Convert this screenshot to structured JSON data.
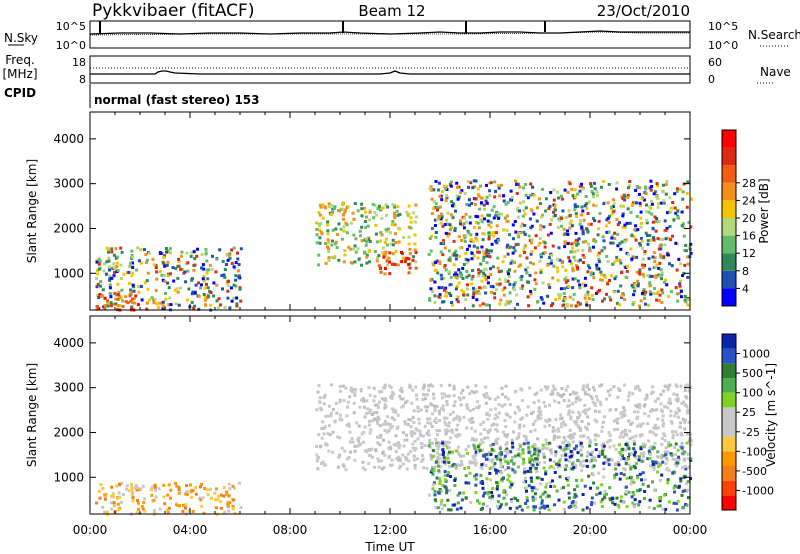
{
  "header": {
    "station": "Pykkvibaer (fitACF)",
    "beam": "Beam 12",
    "date": "23/Oct/2010"
  },
  "noise_panel": {
    "left_label": "N.Sky",
    "left_ticks": [
      "10^5",
      "10^0"
    ],
    "right_ticks": [
      "10^5",
      "10^0"
    ],
    "right_label": "N.Search"
  },
  "freq_panel": {
    "left_label_1": "Freq.",
    "left_label_2": "[MHz]",
    "left_ticks": [
      "18",
      "8"
    ],
    "right_ticks": [
      "60",
      "0"
    ],
    "right_label": "Nave"
  },
  "cpid": {
    "label": "CPID",
    "value": "normal (fast stereo) 153"
  },
  "x_axis": {
    "ticks": [
      "00:00",
      "04:00",
      "08:00",
      "12:00",
      "16:00",
      "20:00",
      "00:00"
    ],
    "title": "Time UT"
  },
  "chart_data": [
    {
      "type": "heatmap",
      "panel": "power",
      "xlabel": "Time UT",
      "ylabel": "Slant Range [km]",
      "xlim_hours": [
        0,
        24
      ],
      "ylim": [
        180,
        4600
      ],
      "y_ticks": [
        1000,
        2000,
        3000,
        4000
      ],
      "colorbar": {
        "label": "Power [dB]",
        "ticks": [
          "4",
          "8",
          "12",
          "16",
          "20",
          "24",
          "28"
        ],
        "colors": [
          "#0000ff",
          "#1e50b4",
          "#2e8b57",
          "#66bb6a",
          "#b3d97a",
          "#f5c400",
          "#f58f1a",
          "#f05d12",
          "#e02a10",
          "#ff0000"
        ]
      },
      "echo_regions": [
        {
          "x": [
            0.2,
            6.0
          ],
          "y": [
            200,
            1600
          ],
          "level": "mixed"
        },
        {
          "x": [
            0.2,
            2.0
          ],
          "y": [
            200,
            600
          ],
          "level": "high"
        },
        {
          "x": [
            9.0,
            13.0
          ],
          "y": [
            1200,
            2600
          ],
          "level": "medium"
        },
        {
          "x": [
            11.5,
            13.0
          ],
          "y": [
            1000,
            1500
          ],
          "level": "high"
        },
        {
          "x": [
            13.5,
            24.0
          ],
          "y": [
            300,
            3100
          ],
          "level": "mixed"
        }
      ]
    },
    {
      "type": "heatmap",
      "panel": "velocity",
      "xlabel": "Time UT",
      "ylabel": "Slant Range [km]",
      "xlim_hours": [
        0,
        24
      ],
      "ylim": [
        180,
        4600
      ],
      "y_ticks": [
        1000,
        2000,
        3000,
        4000
      ],
      "colorbar": {
        "label": "Velocity [m s^-1]",
        "ticks": [
          "1000",
          "500",
          "100",
          "25",
          "-25",
          "-100",
          "-500",
          "-1000"
        ],
        "colors": [
          "#ff0000",
          "#ff4000",
          "#f57f17",
          "#ff9800",
          "#ffc83c",
          "#c8c8c8",
          "#c8c8c8",
          "#7ed321",
          "#4caf50",
          "#2e7d32",
          "#2952c8",
          "#0b24aa"
        ]
      },
      "echo_regions": [
        {
          "x": [
            0.2,
            6.0
          ],
          "y": [
            200,
            900
          ],
          "level": "negative"
        },
        {
          "x": [
            9.0,
            24.0
          ],
          "y": [
            1200,
            3100
          ],
          "level": "ground-scatter"
        },
        {
          "x": [
            13.5,
            24.0
          ],
          "y": [
            300,
            1800
          ],
          "level": "positive"
        }
      ]
    }
  ]
}
